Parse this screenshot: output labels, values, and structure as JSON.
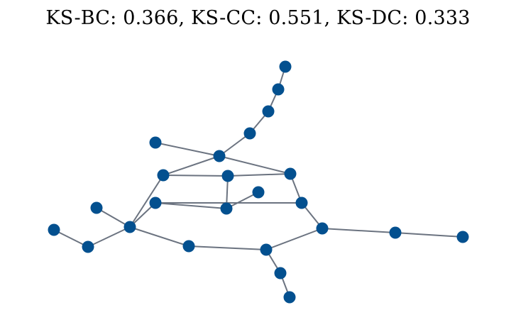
{
  "title": "KS-BC: 0.366, KS-CC: 0.551, KS-DC: 0.333",
  "colors": {
    "node": "#03508f",
    "edge": "#6b7380"
  },
  "graph": {
    "nodes": [
      {
        "id": "n0"
      },
      {
        "id": "n1"
      },
      {
        "id": "n2"
      },
      {
        "id": "n3"
      },
      {
        "id": "n4"
      },
      {
        "id": "n5"
      },
      {
        "id": "n6"
      },
      {
        "id": "n7"
      },
      {
        "id": "n8"
      },
      {
        "id": "n9"
      },
      {
        "id": "n10"
      },
      {
        "id": "n11"
      },
      {
        "id": "n12"
      },
      {
        "id": "n13"
      },
      {
        "id": "n14"
      },
      {
        "id": "n15"
      },
      {
        "id": "n16"
      },
      {
        "id": "n17"
      },
      {
        "id": "n18"
      },
      {
        "id": "n19"
      },
      {
        "id": "n20"
      },
      {
        "id": "n21"
      },
      {
        "id": "n22"
      },
      {
        "id": "n23"
      }
    ],
    "edges": [
      [
        "n0",
        "n1"
      ],
      [
        "n1",
        "n2"
      ],
      [
        "n2",
        "n3"
      ],
      [
        "n3",
        "n5"
      ],
      [
        "n4",
        "n5"
      ],
      [
        "n5",
        "n6"
      ],
      [
        "n5",
        "n8"
      ],
      [
        "n6",
        "n7"
      ],
      [
        "n6",
        "n12"
      ],
      [
        "n7",
        "n8"
      ],
      [
        "n7",
        "n10"
      ],
      [
        "n8",
        "n13"
      ],
      [
        "n9",
        "n10"
      ],
      [
        "n10",
        "n11"
      ],
      [
        "n11",
        "n13"
      ],
      [
        "n12",
        "n11"
      ],
      [
        "n12",
        "n14"
      ],
      [
        "n12",
        "n16"
      ],
      [
        "n15",
        "n16"
      ],
      [
        "n16",
        "n17"
      ],
      [
        "n16",
        "n18"
      ],
      [
        "n13",
        "n21"
      ],
      [
        "n19",
        "n20"
      ],
      [
        "n20",
        "n21"
      ],
      [
        "n21",
        "n22"
      ],
      [
        "n22",
        "n23"
      ]
    ]
  }
}
